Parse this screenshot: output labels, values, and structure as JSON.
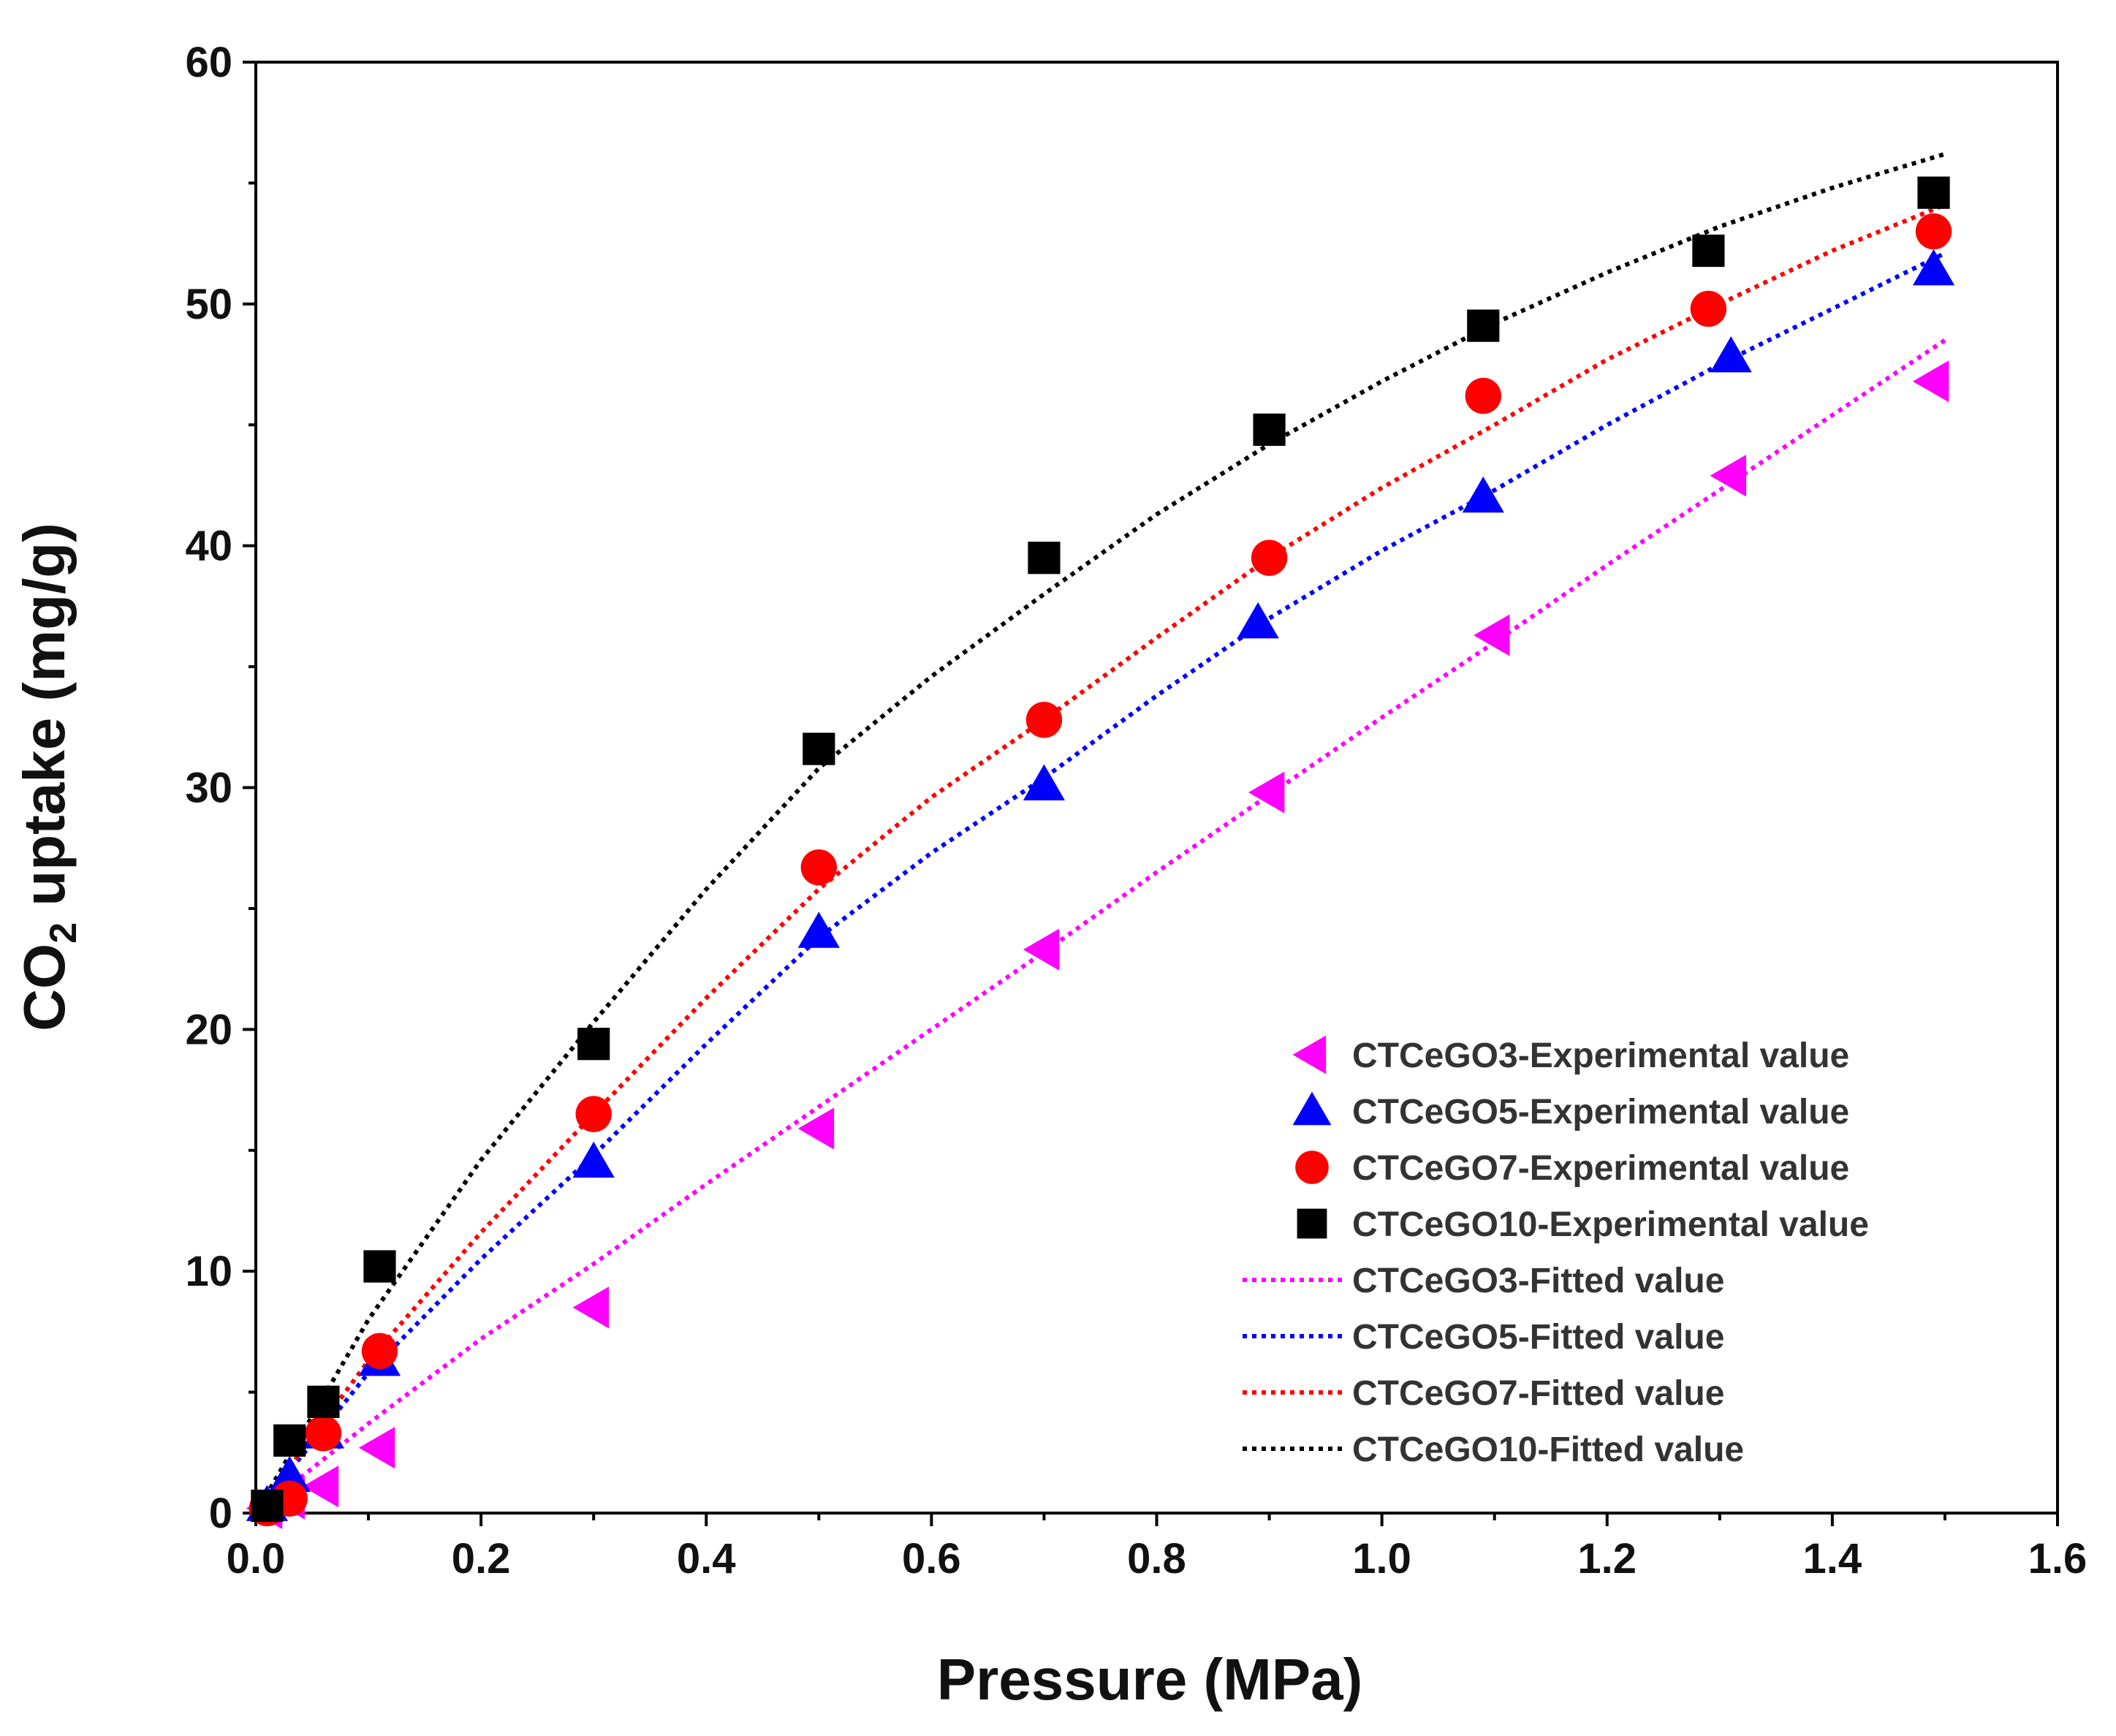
{
  "chart_data": {
    "type": "scatter",
    "xlabel": "Pressure (MPa)",
    "ylabel_parts": [
      "CO",
      "2",
      " uptake (mg/g)"
    ],
    "xlim": [
      0.0,
      1.6
    ],
    "ylim": [
      0,
      60
    ],
    "xticks": [
      "0.0",
      "0.2",
      "0.4",
      "0.6",
      "0.8",
      "1.0",
      "1.2",
      "1.4",
      "1.6"
    ],
    "yticks": [
      "0",
      "10",
      "20",
      "30",
      "40",
      "50",
      "60"
    ],
    "grid": false,
    "legend_position": "lower-right",
    "experimental_series": [
      {
        "name": "CTCeGO3-Experimental value",
        "marker": "triangle-left",
        "color": "#FF00FF",
        "x": [
          0.01,
          0.03,
          0.06,
          0.11,
          0.3,
          0.5,
          0.7,
          0.9,
          1.1,
          1.31,
          1.49
        ],
        "y": [
          0.2,
          0.6,
          1.1,
          2.7,
          8.5,
          15.9,
          23.3,
          29.8,
          36.3,
          42.9,
          46.8
        ]
      },
      {
        "name": "CTCeGO5-Experimental value",
        "marker": "triangle-up",
        "color": "#0000FF",
        "x": [
          0.01,
          0.03,
          0.06,
          0.11,
          0.3,
          0.5,
          0.7,
          0.89,
          1.09,
          1.31,
          1.49
        ],
        "y": [
          0.3,
          1.5,
          3.3,
          6.3,
          14.5,
          24.0,
          30.1,
          36.8,
          42.0,
          47.8,
          51.4
        ]
      },
      {
        "name": "CTCeGO7-Experimental value",
        "marker": "circle",
        "color": "#FF0000",
        "x": [
          0.01,
          0.03,
          0.06,
          0.11,
          0.3,
          0.5,
          0.7,
          0.9,
          1.09,
          1.29,
          1.49
        ],
        "y": [
          0.2,
          0.6,
          3.3,
          6.7,
          16.5,
          26.7,
          32.8,
          39.5,
          46.2,
          49.8,
          53.0
        ]
      },
      {
        "name": "CTCeGO10-Experimental value",
        "marker": "square",
        "color": "#000000",
        "x": [
          0.01,
          0.03,
          0.06,
          0.11,
          0.3,
          0.5,
          0.7,
          0.9,
          1.09,
          1.29,
          1.49
        ],
        "y": [
          0.3,
          3.0,
          4.6,
          10.2,
          19.4,
          31.6,
          39.5,
          44.8,
          49.1,
          52.2,
          54.6
        ]
      }
    ],
    "fitted_series": [
      {
        "name": "CTCeGO3-Fitted value",
        "color": "#FF00FF",
        "x": [
          0.0,
          0.1,
          0.2,
          0.3,
          0.4,
          0.5,
          0.6,
          0.7,
          0.8,
          0.9,
          1.0,
          1.1,
          1.2,
          1.3,
          1.4,
          1.5
        ],
        "y": [
          0.0,
          3.7,
          7.2,
          10.3,
          13.6,
          16.8,
          20.0,
          23.2,
          26.5,
          29.7,
          32.9,
          36.0,
          39.2,
          42.3,
          45.4,
          48.5
        ]
      },
      {
        "name": "CTCeGO5-Fitted value",
        "color": "#0000FF",
        "x": [
          0.0,
          0.1,
          0.2,
          0.3,
          0.4,
          0.5,
          0.6,
          0.7,
          0.8,
          0.9,
          1.0,
          1.1,
          1.2,
          1.3,
          1.4,
          1.5
        ],
        "y": [
          0.0,
          5.8,
          10.5,
          14.8,
          19.4,
          23.8,
          27.3,
          30.4,
          33.8,
          37.0,
          39.8,
          42.3,
          45.0,
          47.5,
          49.8,
          52.1
        ]
      },
      {
        "name": "CTCeGO7-Fitted value",
        "color": "#FF0000",
        "x": [
          0.0,
          0.1,
          0.2,
          0.3,
          0.4,
          0.5,
          0.6,
          0.7,
          0.8,
          0.9,
          1.0,
          1.1,
          1.2,
          1.3,
          1.4,
          1.5
        ],
        "y": [
          0.0,
          6.3,
          11.6,
          16.5,
          21.3,
          25.8,
          29.6,
          32.8,
          36.2,
          39.5,
          42.4,
          45.0,
          47.7,
          50.0,
          52.2,
          54.1
        ]
      },
      {
        "name": "CTCeGO10-Fitted value",
        "color": "#000000",
        "x": [
          0.0,
          0.1,
          0.2,
          0.3,
          0.4,
          0.5,
          0.6,
          0.7,
          0.8,
          0.9,
          1.0,
          1.1,
          1.2,
          1.3,
          1.4,
          1.5
        ],
        "y": [
          0.0,
          8.0,
          14.6,
          20.3,
          25.8,
          30.8,
          34.6,
          38.0,
          41.3,
          44.2,
          46.8,
          49.2,
          51.3,
          53.2,
          54.8,
          56.2
        ]
      }
    ]
  }
}
